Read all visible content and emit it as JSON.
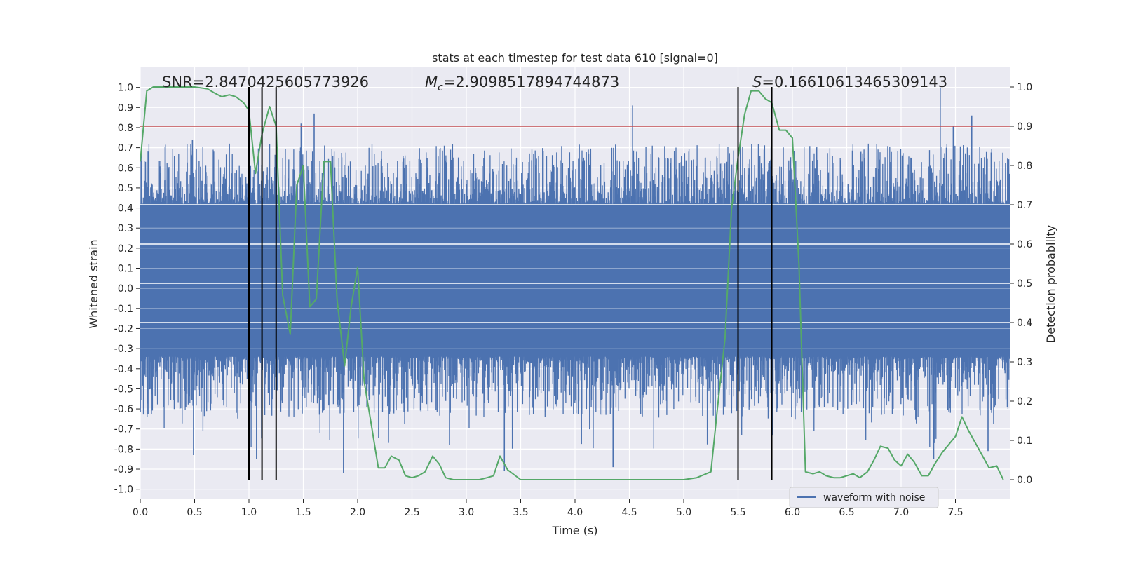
{
  "chart_data": {
    "type": "line",
    "title": "stats at each timestep for test data 610 [signal=0]",
    "xlabel": "Time (s)",
    "ylabel": "Whitened strain",
    "ylabel_right": "Detection probability",
    "xlim": [
      0.0,
      8.0
    ],
    "ylim": [
      -1.05,
      1.1
    ],
    "ylim_right": [
      -0.05,
      1.05
    ],
    "x_ticks": [
      0.0,
      0.5,
      1.0,
      1.5,
      2.0,
      2.5,
      3.0,
      3.5,
      4.0,
      4.5,
      5.0,
      5.5,
      6.0,
      6.5,
      7.0,
      7.5
    ],
    "y_ticks": [
      -1.0,
      -0.9,
      -0.8,
      -0.7,
      -0.6,
      -0.5,
      -0.4,
      -0.3,
      -0.2,
      -0.1,
      0.0,
      0.1,
      0.2,
      0.3,
      0.4,
      0.5,
      0.6,
      0.7,
      0.8,
      0.9,
      1.0
    ],
    "y_ticks_right": [
      0.0,
      0.1,
      0.2,
      0.3,
      0.4,
      0.5,
      0.6,
      0.7,
      0.8,
      0.9,
      1.0
    ],
    "grid": true,
    "legend": {
      "position": "lower-right",
      "entries": [
        {
          "name": "waveform with noise",
          "color": "#4c72b0"
        }
      ]
    },
    "annotations": {
      "snr": "SNR=2.8470425605773926",
      "mc_symbol": "M",
      "mc_sub": "c",
      "mc_value": "=2.9098517894744873",
      "s_symbol": "S",
      "s_value": "=0.16610613465309143"
    },
    "threshold_line": {
      "y_right": 0.9,
      "color": "#c44e52"
    },
    "vertical_lines": {
      "x": [
        1.0,
        1.12,
        1.25,
        5.5,
        5.81
      ],
      "y_right_range": [
        0.0,
        1.0
      ],
      "color": "#000000"
    },
    "waveform": {
      "name": "waveform with noise",
      "color": "#4c72b0",
      "core_band": [
        -0.34,
        0.42
      ],
      "peaks": [
        {
          "x": 4.53,
          "y": 0.91
        },
        {
          "x": 1.6,
          "y": 0.87
        },
        {
          "x": 7.36,
          "y": 1.0
        },
        {
          "x": 7.65,
          "y": 0.86
        },
        {
          "x": 7.48,
          "y": 0.81
        },
        {
          "x": 1.48,
          "y": 0.82
        },
        {
          "x": 0.48,
          "y": 0.74
        },
        {
          "x": 0.82,
          "y": 0.72
        },
        {
          "x": 1.87,
          "y": -0.92
        },
        {
          "x": 4.35,
          "y": -0.89
        },
        {
          "x": 0.49,
          "y": -0.83
        },
        {
          "x": 3.35,
          "y": -0.91
        },
        {
          "x": 1.07,
          "y": -0.85
        },
        {
          "x": 7.3,
          "y": -0.85
        },
        {
          "x": 7.8,
          "y": -0.81
        }
      ]
    },
    "detection_probability": {
      "color": "#55a868",
      "x": [
        0.0,
        0.06,
        0.12,
        0.25,
        0.5,
        0.62,
        0.68,
        0.75,
        0.82,
        0.88,
        0.95,
        1.0,
        1.06,
        1.12,
        1.19,
        1.25,
        1.31,
        1.38,
        1.44,
        1.5,
        1.56,
        1.62,
        1.69,
        1.75,
        1.81,
        1.88,
        1.94,
        2.0,
        2.06,
        2.12,
        2.19,
        2.25,
        2.31,
        2.38,
        2.44,
        2.5,
        2.56,
        2.62,
        2.69,
        2.75,
        2.81,
        2.88,
        2.94,
        3.0,
        3.06,
        3.12,
        3.19,
        3.25,
        3.31,
        3.38,
        3.5,
        3.62,
        3.75,
        4.0,
        4.5,
        5.0,
        5.12,
        5.25,
        5.31,
        5.38,
        5.44,
        5.5,
        5.56,
        5.62,
        5.69,
        5.75,
        5.81,
        5.88,
        5.94,
        6.0,
        6.06,
        6.12,
        6.19,
        6.25,
        6.31,
        6.38,
        6.44,
        6.5,
        6.56,
        6.62,
        6.69,
        6.75,
        6.81,
        6.88,
        6.94,
        7.0,
        7.06,
        7.12,
        7.19,
        7.25,
        7.31,
        7.38,
        7.44,
        7.5,
        7.56,
        7.62,
        7.69,
        7.75,
        7.81,
        7.88,
        7.94
      ],
      "y": [
        0.81,
        0.99,
        1.0,
        1.0,
        1.0,
        0.995,
        0.985,
        0.975,
        0.98,
        0.975,
        0.96,
        0.94,
        0.78,
        0.88,
        0.95,
        0.9,
        0.47,
        0.37,
        0.75,
        0.8,
        0.44,
        0.46,
        0.81,
        0.81,
        0.46,
        0.29,
        0.44,
        0.54,
        0.25,
        0.15,
        0.03,
        0.03,
        0.06,
        0.05,
        0.01,
        0.005,
        0.01,
        0.02,
        0.06,
        0.04,
        0.005,
        0.0,
        0.0,
        0.0,
        0.0,
        0.0,
        0.005,
        0.01,
        0.06,
        0.025,
        0.0,
        0.0,
        0.0,
        0.0,
        0.0,
        0.0,
        0.005,
        0.02,
        0.18,
        0.36,
        0.69,
        0.82,
        0.93,
        0.99,
        0.99,
        0.97,
        0.96,
        0.89,
        0.89,
        0.87,
        0.55,
        0.02,
        0.015,
        0.02,
        0.01,
        0.005,
        0.005,
        0.01,
        0.015,
        0.005,
        0.02,
        0.05,
        0.085,
        0.08,
        0.05,
        0.035,
        0.065,
        0.045,
        0.01,
        0.01,
        0.04,
        0.07,
        0.09,
        0.11,
        0.16,
        0.125,
        0.09,
        0.06,
        0.03,
        0.035,
        0.0
      ]
    }
  }
}
